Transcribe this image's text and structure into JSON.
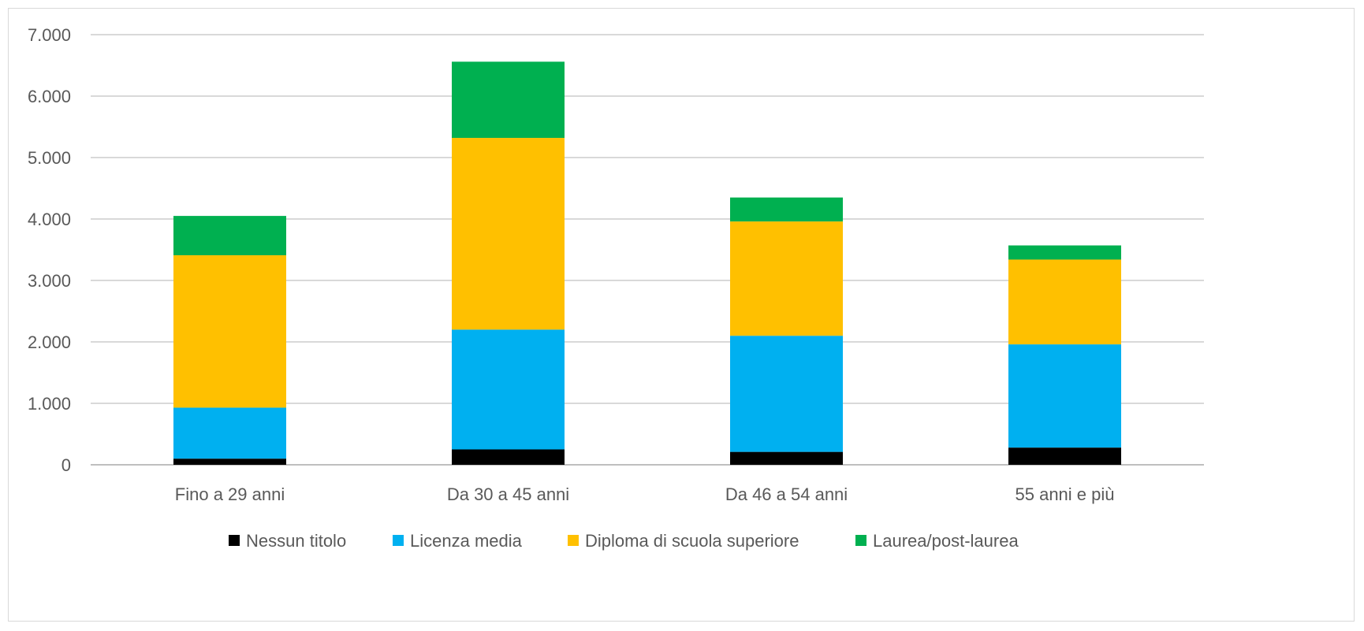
{
  "chart_data": {
    "type": "bar",
    "stacked": true,
    "categories": [
      "Fino a 29 anni",
      "Da 30 a 45 anni",
      "Da 46 a 54 anni",
      "55 anni e più"
    ],
    "series": [
      {
        "name": "Nessun titolo",
        "color": "#000000",
        "values": [
          100,
          250,
          210,
          280
        ]
      },
      {
        "name": "Licenza media",
        "color": "#00b0f0",
        "values": [
          830,
          1950,
          1890,
          1680
        ]
      },
      {
        "name": "Diploma di scuola superiore",
        "color": "#ffc000",
        "values": [
          2480,
          3120,
          1860,
          1380
        ]
      },
      {
        "name": "Laurea/post-laurea",
        "color": "#00b050",
        "values": [
          640,
          1240,
          390,
          230
        ]
      }
    ],
    "ylim": [
      0,
      7000
    ],
    "yticks": [
      0,
      1000,
      2000,
      3000,
      4000,
      5000,
      6000,
      7000
    ],
    "ytick_labels": [
      "0",
      "1.000",
      "2.000",
      "3.000",
      "4.000",
      "5.000",
      "6.000",
      "7.000"
    ],
    "grid": true,
    "legend_position": "bottom"
  }
}
